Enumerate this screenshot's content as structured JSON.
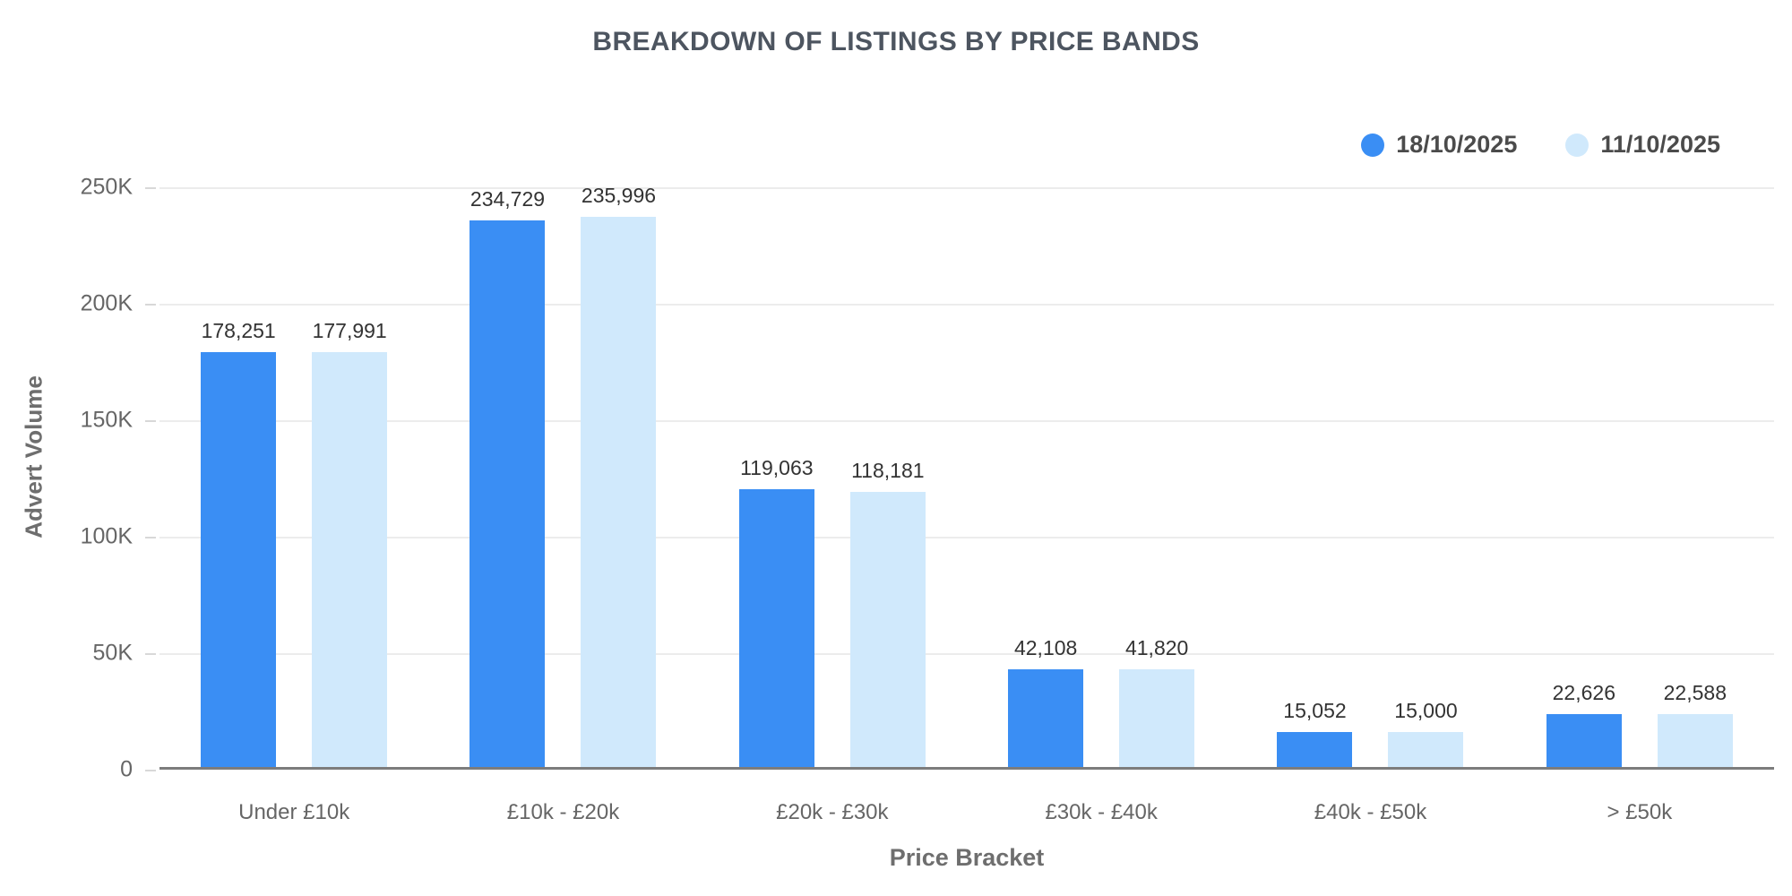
{
  "chart_data": {
    "type": "bar",
    "title": "BREAKDOWN OF LISTINGS BY PRICE BANDS",
    "xlabel": "Price Bracket",
    "ylabel": "Advert Volume",
    "categories": [
      "Under £10k",
      "£10k - £20k",
      "£20k - £30k",
      "£30k - £40k",
      "£40k - £50k",
      "> £50k"
    ],
    "series": [
      {
        "name": "18/10/2025",
        "color": "#3a8ef4",
        "values": [
          178251,
          234729,
          119063,
          42108,
          15052,
          22626
        ]
      },
      {
        "name": "11/10/2025",
        "color": "#d0e9fc",
        "values": [
          177991,
          235996,
          118181,
          41820,
          15000,
          22588
        ]
      }
    ],
    "ylim": [
      0,
      250000
    ],
    "y_ticks": [
      "250K",
      "200K",
      "150K",
      "100K",
      "50K",
      "0"
    ],
    "grid": "horizontal",
    "legend_position": "top-right",
    "value_labels": true
  }
}
